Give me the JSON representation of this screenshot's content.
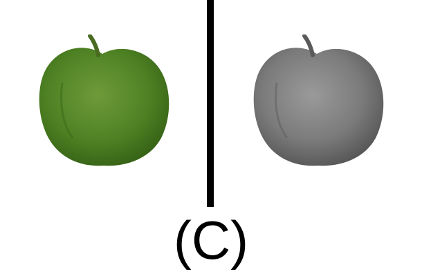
{
  "panel_label": "(C)",
  "left_image": {
    "icon": "green-apple-icon",
    "colors": {
      "body_light": "#6f9a3a",
      "body_mid": "#4f8224",
      "body_dark": "#2f5a12",
      "stem": "#4a6b22"
    }
  },
  "right_image": {
    "icon": "grayscale-apple-icon",
    "colors": {
      "body_light": "#9a9a9a",
      "body_mid": "#7b7b7b",
      "body_dark": "#4c4c4c",
      "stem": "#5a5a5a"
    }
  },
  "divider": {
    "color": "#000000"
  }
}
